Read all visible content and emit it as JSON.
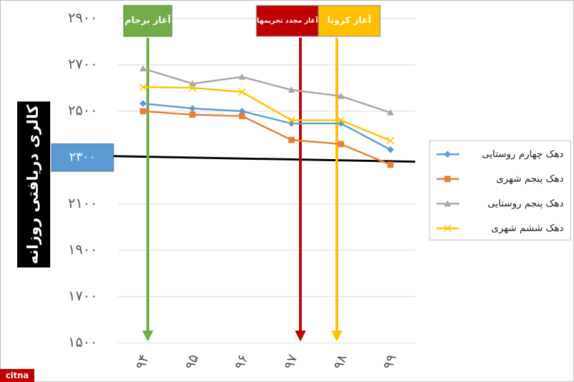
{
  "chart_data": {
    "type": "line",
    "y_axis_label": "کالری دریافتی روزانه",
    "categories": [
      "۹۴",
      "۹۵",
      "۹۶",
      "۹۷",
      "۹۸",
      "۹۹"
    ],
    "series": [
      {
        "name": "دهک چهارم روستایی",
        "color": "#5b9bd5",
        "marker": "diamond",
        "values": [
          2533,
          2512,
          2500,
          2447,
          2447,
          2334
        ]
      },
      {
        "name": "دهک پنجم شهری",
        "color": "#ed7d31",
        "marker": "square",
        "values": [
          2500,
          2485,
          2479,
          2376,
          2358,
          2269
        ]
      },
      {
        "name": "دهک پنجم روستایی",
        "color": "#a5a5a5",
        "marker": "triangle",
        "values": [
          2684,
          2619,
          2648,
          2592,
          2565,
          2494
        ]
      },
      {
        "name": "دهک ششم شهری",
        "color": "#ffc000",
        "marker": "x",
        "values": [
          2604,
          2601,
          2583,
          2461,
          2461,
          2373
        ]
      }
    ],
    "ylim": [
      1500,
      2900
    ],
    "yticks": [
      {
        "value": 1500,
        "label": "۱۵۰۰"
      },
      {
        "value": 1700,
        "label": "۱۷۰۰"
      },
      {
        "value": 1900,
        "label": "۱۹۰۰"
      },
      {
        "value": 2100,
        "label": "۲۱۰۰"
      },
      {
        "value": 2500,
        "label": "۲۵۰۰"
      },
      {
        "value": 2700,
        "label": "۲۷۰۰"
      },
      {
        "value": 2900,
        "label": "۲۹۰۰"
      }
    ],
    "grid": true,
    "reference_line": {
      "value": 2300,
      "label": "۲۳۰۰",
      "start": 2306,
      "end": 2282
    },
    "events": [
      {
        "label": "آغاز برجام",
        "color": "#70ad47"
      },
      {
        "label": "آغاز مجدد تحریمها",
        "color": "#c00000"
      },
      {
        "label": "آغاز کرونا",
        "color": "#ffc000"
      }
    ],
    "legend": "right",
    "watermark": "citna"
  }
}
